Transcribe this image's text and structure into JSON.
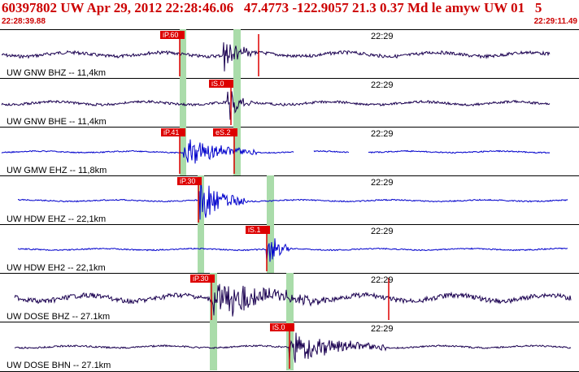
{
  "header": {
    "title": "60397802 UW Apr 29, 2012 22:28:46.06   47.4773 -122.9057 21.3 0.37 Md le amyw UW 01   5",
    "start_time": "22:28:39.88",
    "end_time": "22:29:11.49"
  },
  "colors": {
    "header": "#cc0000",
    "trace_dark": "#1a0050",
    "trace_blue": "#0000cc",
    "pick": "#dd0000",
    "window": "#aadcaa"
  },
  "traces": [
    {
      "label": "UW GNW BHZ -- 11,4km",
      "time_mark": "22:29",
      "color": "trace_dark",
      "picks": [
        {
          "label": "iP.60"
        }
      ]
    },
    {
      "label": "UW GNW BHE -- 11,4km",
      "time_mark": "22:29",
      "color": "trace_dark",
      "picks": [
        {
          "label": "iS.0"
        }
      ]
    },
    {
      "label": "UW GMW EHZ -- 11,8km",
      "time_mark": "22:29",
      "color": "trace_blue",
      "picks": [
        {
          "label": "iP.41"
        },
        {
          "label": "eS.2"
        }
      ]
    },
    {
      "label": "UW HDW EHZ -- 22,1km",
      "time_mark": "22:29",
      "color": "trace_blue",
      "picks": [
        {
          "label": "iP.30"
        }
      ]
    },
    {
      "label": "UW HDW EH2 -- 22,1km",
      "time_mark": "22:29",
      "color": "trace_blue",
      "picks": [
        {
          "label": "iS.1"
        }
      ]
    },
    {
      "label": "UW DOSE BHZ -- 27.1km",
      "time_mark": "22:29",
      "color": "trace_dark",
      "picks": [
        {
          "label": "iP.30"
        }
      ]
    },
    {
      "label": "UW DOSE BHN -- 27.1km",
      "time_mark": "22:29",
      "color": "trace_dark",
      "picks": [
        {
          "label": "iS.0"
        }
      ]
    }
  ]
}
